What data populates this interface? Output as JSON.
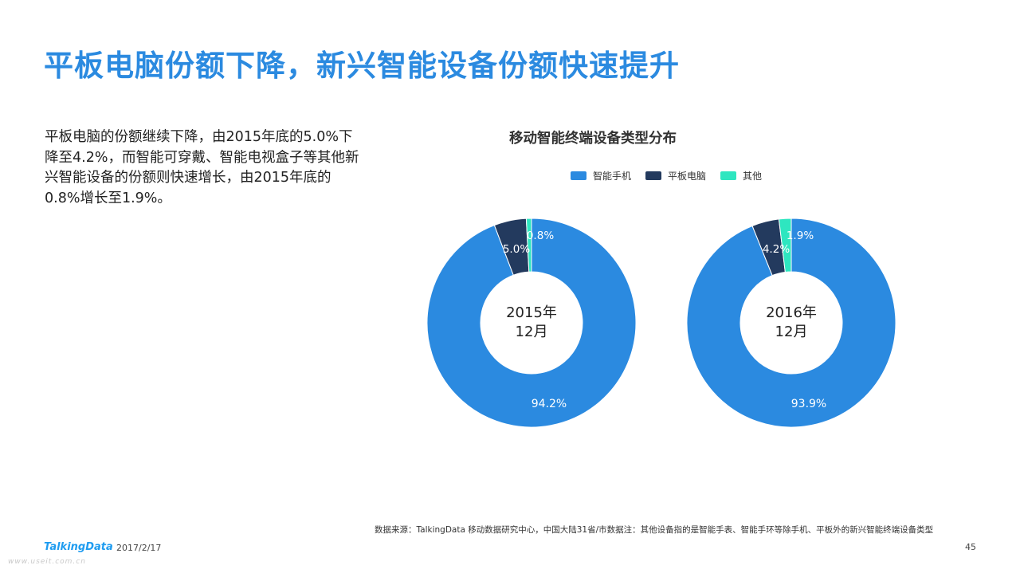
{
  "title": "平板电脑份额下降，新兴智能设备份额快速提升",
  "body_text": "平板电脑的份额继续下降，由2015年底的5.0%下降至4.2%，而智能可穿戴、智能电视盒子等其他新兴智能设备的份额则快速增长，由2015年底的0.8%增长至1.9%。",
  "footer": {
    "source": "数据来源：TalkingData 移动数据研究中心，中国大陆31省/市数据注：其他设备指的是智能手表、智能手环等除手机、平板外的新兴智能终端设备类型",
    "logo": "TalkingData",
    "date": "2017/2/17",
    "page": "45",
    "watermark": "www.useit.com.cn"
  },
  "colors": {
    "title": "#2b8ae0",
    "smartphone": "#2b8ae0",
    "tablet": "#233a5e",
    "other": "#2ee6c0"
  },
  "chart_data": {
    "type": "pie",
    "title": "移动智能终端设备类型分布",
    "legend_position": "top",
    "categories": [
      "智能手机",
      "平板电脑",
      "其他"
    ],
    "charts": [
      {
        "center_label_line1": "2015年",
        "center_label_line2": "12月",
        "values": [
          94.2,
          5.0,
          0.8
        ],
        "labels": [
          "94.2%",
          "5.0%",
          "0.8%"
        ]
      },
      {
        "center_label_line1": "2016年",
        "center_label_line2": "12月",
        "values": [
          93.9,
          4.2,
          1.9
        ],
        "labels": [
          "93.9%",
          "4.2%",
          "1.9%"
        ]
      }
    ]
  }
}
